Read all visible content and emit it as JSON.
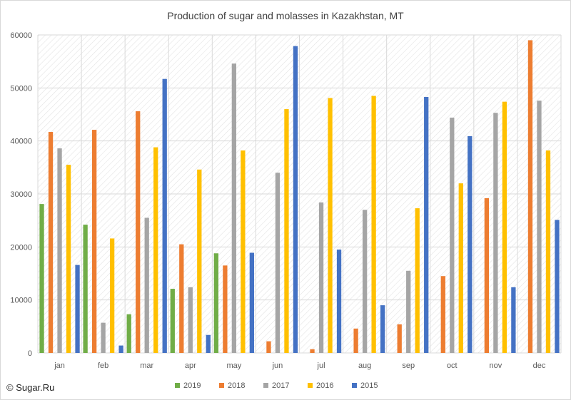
{
  "chart_data": {
    "type": "bar",
    "title": "Production of sugar and molasses in Kazakhstan, MT",
    "xlabel": "",
    "ylabel": "",
    "categories": [
      "jan",
      "feb",
      "mar",
      "apr",
      "may",
      "jun",
      "jul",
      "aug",
      "sep",
      "oct",
      "nov",
      "dec"
    ],
    "ylim": [
      0,
      60000
    ],
    "yticks": [
      0,
      10000,
      20000,
      30000,
      40000,
      50000,
      60000
    ],
    "grid": true,
    "legend_position": "bottom",
    "series": [
      {
        "name": "2019",
        "color": "#70ad47",
        "values": [
          28100,
          24200,
          7300,
          12100,
          18800,
          0,
          0,
          0,
          0,
          0,
          0,
          0
        ]
      },
      {
        "name": "2018",
        "color": "#ed7d31",
        "values": [
          41700,
          42100,
          45600,
          20500,
          16500,
          2200,
          700,
          4600,
          5400,
          14500,
          29200,
          59000
        ]
      },
      {
        "name": "2017",
        "color": "#a5a5a5",
        "values": [
          38600,
          5700,
          25500,
          12400,
          54600,
          34000,
          28400,
          27000,
          15500,
          44400,
          45300,
          47600
        ]
      },
      {
        "name": "2016",
        "color": "#ffc000",
        "values": [
          35500,
          21600,
          38800,
          34600,
          38200,
          46000,
          48100,
          48500,
          27300,
          32000,
          47400,
          38200
        ]
      },
      {
        "name": "2015",
        "color": "#4472c4",
        "values": [
          16600,
          1400,
          51700,
          3400,
          18900,
          57900,
          19500,
          9000,
          48300,
          40900,
          12400,
          25100
        ]
      }
    ]
  },
  "credit": "© Sugar.Ru"
}
